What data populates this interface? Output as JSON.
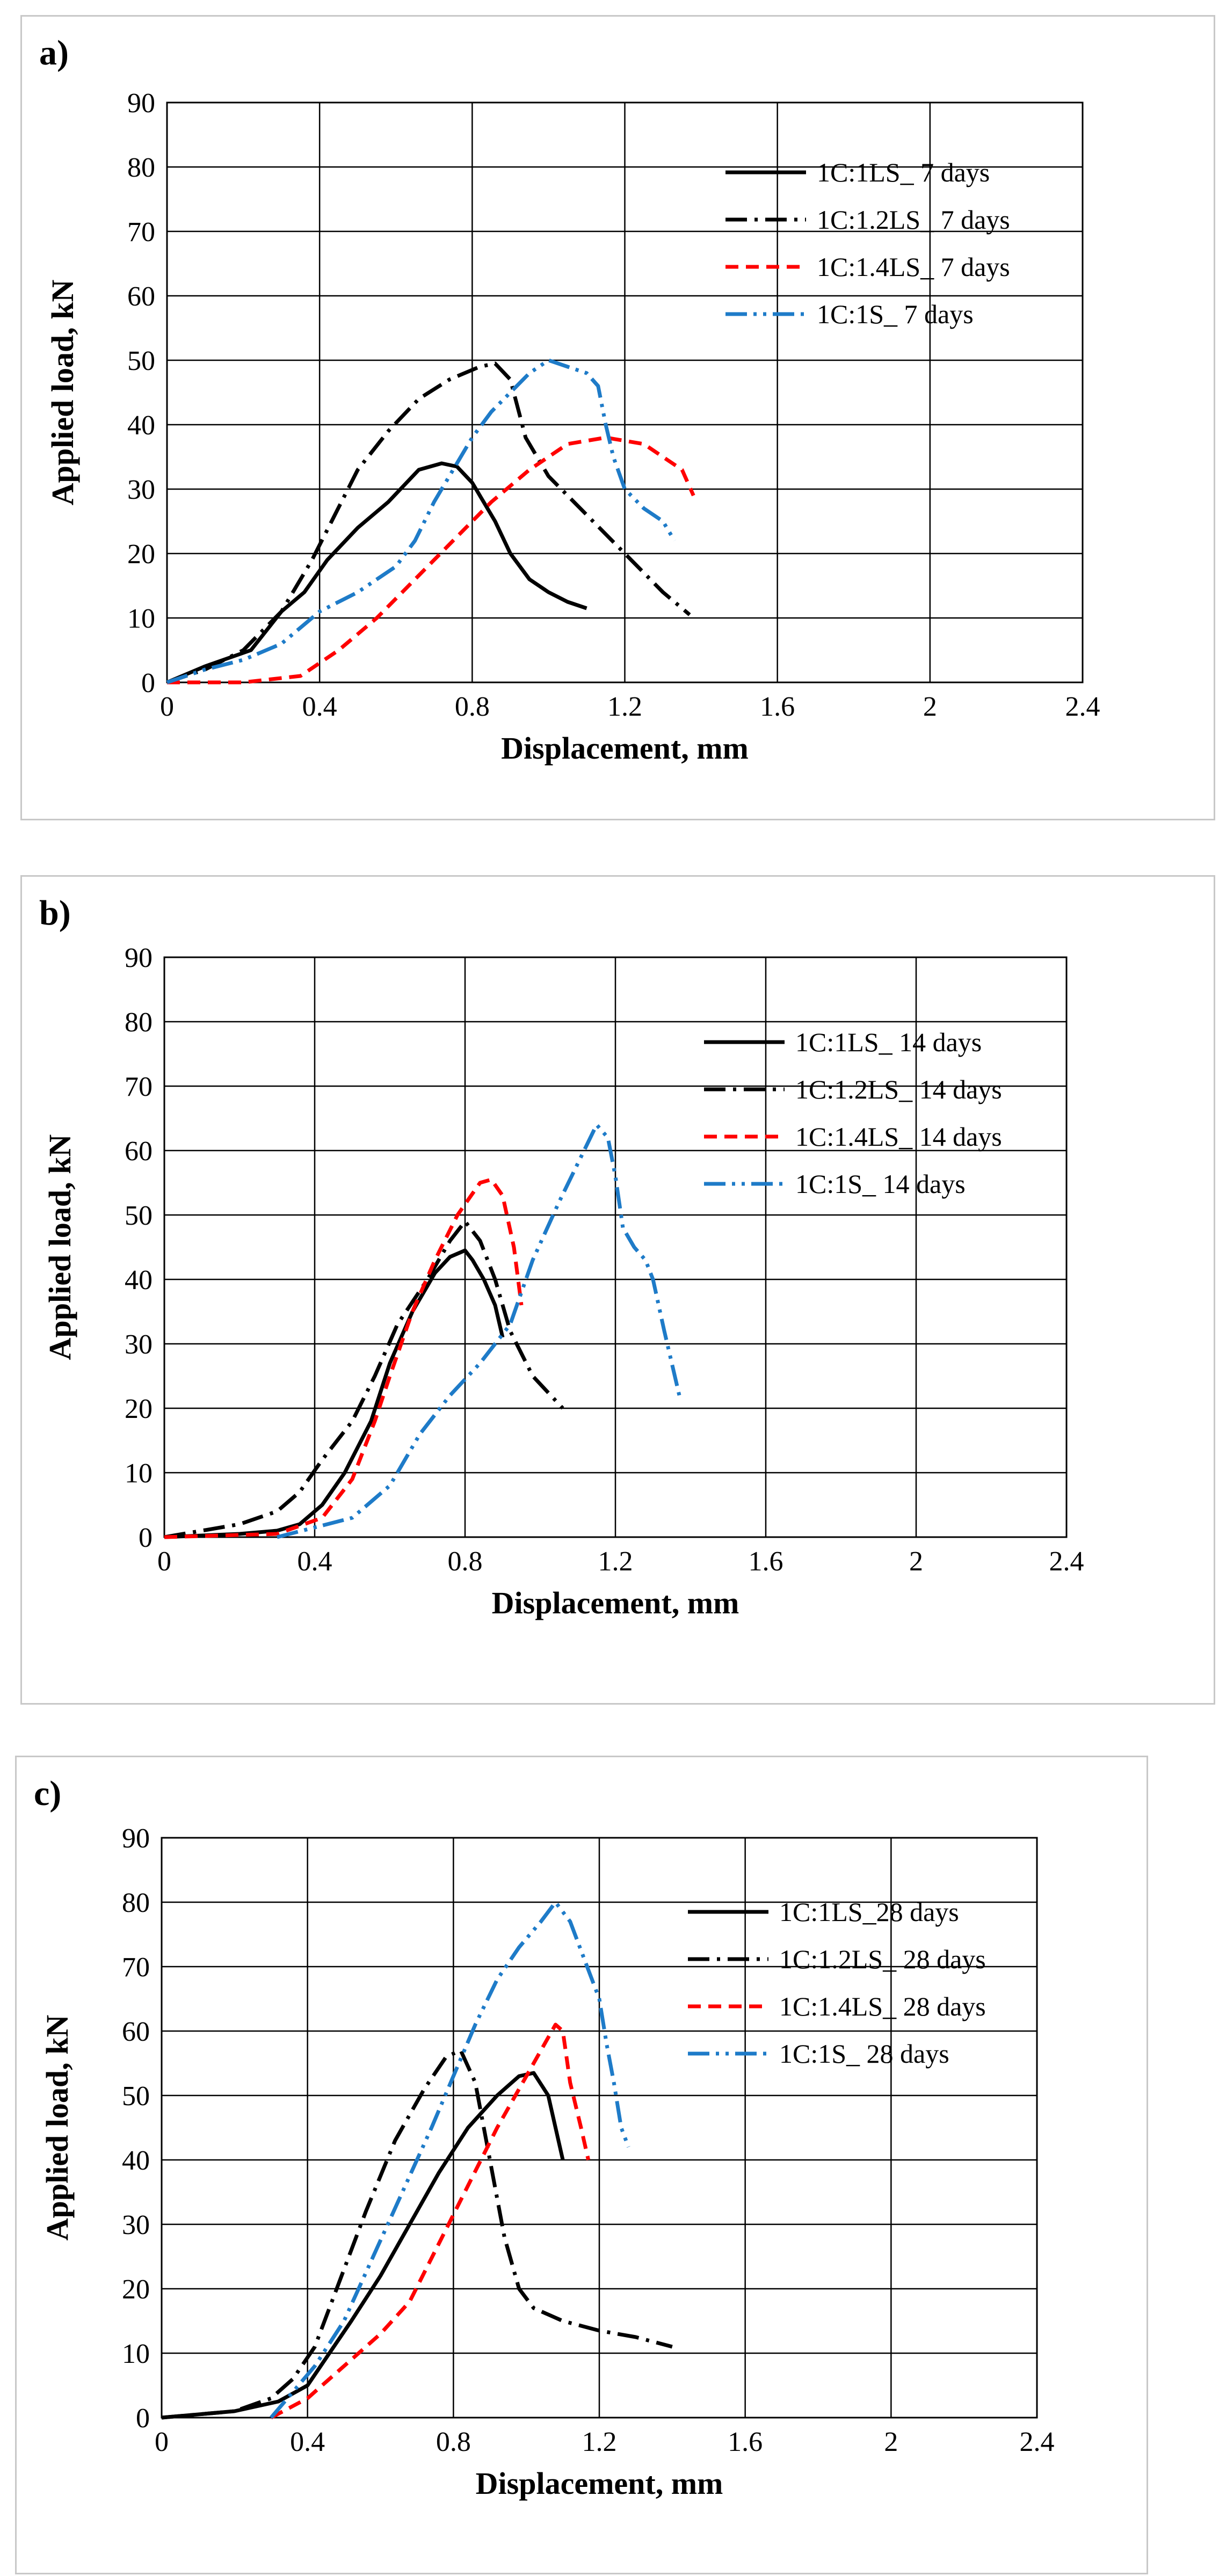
{
  "chart_data": [
    {
      "type": "line",
      "panel": "a)",
      "xlabel": "Displacement, mm",
      "ylabel": "Applied load, kN",
      "xlim": [
        0,
        2.4
      ],
      "ylim": [
        0,
        90
      ],
      "xticks": [
        0,
        0.4,
        0.8,
        1.2,
        1.6,
        2,
        2.4
      ],
      "xtick_labels": [
        "0",
        "0.4",
        "0.8",
        "1.2",
        "1.6",
        "2",
        "2.4"
      ],
      "yticks": [
        0,
        10,
        20,
        30,
        40,
        50,
        60,
        70,
        80,
        90
      ],
      "ytick_labels": [
        "0",
        "10",
        "20",
        "30",
        "40",
        "50",
        "60",
        "70",
        "80",
        "90"
      ],
      "legend_position": "top-right",
      "series": [
        {
          "name": "1C:1LS_ 7 days",
          "color": "#000000",
          "style": "solid",
          "x": [
            0,
            0.1,
            0.22,
            0.3,
            0.36,
            0.42,
            0.5,
            0.58,
            0.66,
            0.72,
            0.76,
            0.8,
            0.86,
            0.9,
            0.95,
            1.0,
            1.05,
            1.1
          ],
          "y": [
            0,
            2.5,
            5,
            11,
            14,
            19,
            24,
            28,
            33,
            34,
            33.5,
            31,
            25,
            20,
            16,
            14,
            12.5,
            11.5
          ]
        },
        {
          "name": "1C:1.2LS_ 7 days",
          "color": "#000000",
          "style": "dashdot",
          "x": [
            0,
            0.1,
            0.2,
            0.3,
            0.38,
            0.44,
            0.5,
            0.58,
            0.66,
            0.74,
            0.82,
            0.86,
            0.9,
            0.94,
            1.0,
            1.1,
            1.2,
            1.3,
            1.37
          ],
          "y": [
            0,
            2,
            5,
            11,
            19,
            26,
            33,
            39,
            44,
            47,
            49,
            49.5,
            47,
            38,
            32,
            26,
            20,
            14,
            10.5
          ]
        },
        {
          "name": "1C:1.4LS_ 7 days",
          "color": "#ff0000",
          "style": "dashed",
          "x": [
            0,
            0.2,
            0.35,
            0.45,
            0.55,
            0.65,
            0.75,
            0.85,
            0.95,
            1.05,
            1.15,
            1.2,
            1.25,
            1.3,
            1.35,
            1.38
          ],
          "y": [
            0,
            0,
            1,
            5,
            10,
            16,
            22,
            28,
            33,
            37,
            38,
            37.5,
            37,
            35,
            33,
            29
          ]
        },
        {
          "name": "1C:1S_ 7 days",
          "color": "#1e7bc8",
          "style": "dashdotdot",
          "x": [
            0,
            0.1,
            0.2,
            0.3,
            0.4,
            0.5,
            0.6,
            0.65,
            0.7,
            0.75,
            0.8,
            0.85,
            0.9,
            0.95,
            1.0,
            1.05,
            1.1,
            1.13,
            1.15,
            1.17,
            1.2,
            1.25,
            1.3,
            1.33
          ],
          "y": [
            0,
            2,
            3.5,
            6,
            11,
            14,
            18,
            22,
            28,
            33,
            38,
            42,
            45,
            48,
            50,
            49,
            48,
            46,
            40,
            35,
            30,
            27,
            25,
            22
          ]
        }
      ]
    },
    {
      "type": "line",
      "panel": "b)",
      "xlabel": "Displacement, mm",
      "ylabel": "Applied load, kN",
      "xlim": [
        0,
        2.4
      ],
      "ylim": [
        0,
        90
      ],
      "xticks": [
        0,
        0.4,
        0.8,
        1.2,
        1.6,
        2,
        2.4
      ],
      "xtick_labels": [
        "0",
        "0.4",
        "0.8",
        "1.2",
        "1.6",
        "2",
        "2.4"
      ],
      "yticks": [
        0,
        10,
        20,
        30,
        40,
        50,
        60,
        70,
        80,
        90
      ],
      "ytick_labels": [
        "0",
        "10",
        "20",
        "30",
        "40",
        "50",
        "60",
        "70",
        "80",
        "90"
      ],
      "legend_position": "top-right",
      "series": [
        {
          "name": "1C:1LS_ 14 days",
          "color": "#000000",
          "style": "solid",
          "x": [
            0,
            0.2,
            0.3,
            0.36,
            0.42,
            0.48,
            0.55,
            0.6,
            0.66,
            0.72,
            0.76,
            0.8,
            0.82,
            0.85,
            0.88,
            0.9
          ],
          "y": [
            0,
            0.5,
            1,
            2,
            5,
            10,
            18,
            27,
            35,
            41,
            43.5,
            44.5,
            43,
            40,
            36,
            31
          ]
        },
        {
          "name": "1C:1.2LS_ 14 days",
          "color": "#000000",
          "style": "dashdot",
          "x": [
            0,
            0.1,
            0.2,
            0.3,
            0.36,
            0.42,
            0.5,
            0.56,
            0.62,
            0.7,
            0.76,
            0.8,
            0.84,
            0.88,
            0.92,
            0.98,
            1.06
          ],
          "y": [
            0,
            1,
            2,
            4,
            7,
            12,
            18,
            25,
            33,
            40,
            46,
            49,
            46,
            40,
            32,
            25,
            20
          ]
        },
        {
          "name": "1C:1.4LS_ 14 days",
          "color": "#ff0000",
          "style": "dashed",
          "x": [
            0,
            0.3,
            0.42,
            0.5,
            0.56,
            0.6,
            0.66,
            0.72,
            0.78,
            0.84,
            0.87,
            0.9,
            0.93,
            0.95
          ],
          "y": [
            0,
            0.5,
            3,
            9,
            18,
            25,
            35,
            43,
            50,
            55,
            55.5,
            53,
            45,
            36
          ]
        },
        {
          "name": "1C:1S_ 14 days",
          "color": "#1e7bc8",
          "style": "dashdotdot",
          "x": [
            0.3,
            0.5,
            0.6,
            0.68,
            0.76,
            0.84,
            0.92,
            0.98,
            1.05,
            1.1,
            1.15,
            1.18,
            1.2,
            1.22,
            1.25,
            1.28,
            1.3,
            1.33,
            1.35,
            1.37
          ],
          "y": [
            0,
            3,
            8,
            16,
            22,
            27,
            33,
            43,
            52,
            58,
            64,
            62,
            56,
            48,
            45,
            43,
            40,
            32,
            27,
            22
          ]
        }
      ]
    },
    {
      "type": "line",
      "panel": "c)",
      "xlabel": "Displacement, mm",
      "ylabel": "Applied load, kN",
      "xlim": [
        0,
        2.4
      ],
      "ylim": [
        0,
        90
      ],
      "xticks": [
        0,
        0.4,
        0.8,
        1.2,
        1.6,
        2,
        2.4
      ],
      "xtick_labels": [
        "0",
        "0.4",
        "0.8",
        "1.2",
        "1.6",
        "2",
        "2.4"
      ],
      "yticks": [
        0,
        10,
        20,
        30,
        40,
        50,
        60,
        70,
        80,
        90
      ],
      "ytick_labels": [
        "0",
        "10",
        "20",
        "30",
        "40",
        "50",
        "60",
        "70",
        "80",
        "90"
      ],
      "legend_position": "top-right",
      "series": [
        {
          "name": "1C:1LS_28 days",
          "color": "#000000",
          "style": "solid",
          "x": [
            0,
            0.2,
            0.32,
            0.4,
            0.46,
            0.52,
            0.6,
            0.68,
            0.76,
            0.84,
            0.92,
            0.98,
            1.02,
            1.06,
            1.08,
            1.1
          ],
          "y": [
            0,
            1,
            2.5,
            5,
            10,
            15,
            22,
            30,
            38,
            45,
            50,
            53,
            53.5,
            50,
            45,
            40
          ]
        },
        {
          "name": "1C:1.2LS_ 28 days",
          "color": "#000000",
          "style": "dashdot",
          "x": [
            0,
            0.2,
            0.3,
            0.36,
            0.42,
            0.48,
            0.56,
            0.64,
            0.72,
            0.78,
            0.82,
            0.86,
            0.9,
            0.94,
            0.98,
            1.02,
            1.1,
            1.2,
            1.3,
            1.4
          ],
          "y": [
            0,
            1,
            3,
            6,
            11,
            20,
            32,
            43,
            51,
            56,
            57,
            52,
            40,
            28,
            20,
            17,
            15,
            13.5,
            12.5,
            11
          ]
        },
        {
          "name": "1C:1.4LS_ 28 days",
          "color": "#ff0000",
          "style": "dashed",
          "x": [
            0.3,
            0.4,
            0.5,
            0.6,
            0.68,
            0.76,
            0.84,
            0.92,
            1.0,
            1.04,
            1.08,
            1.1,
            1.12,
            1.15,
            1.17
          ],
          "y": [
            0,
            3,
            8,
            13,
            18,
            27,
            36,
            45,
            53,
            57,
            61,
            60,
            52,
            45,
            40
          ]
        },
        {
          "name": "1C:1S_ 28 days",
          "color": "#1e7bc8",
          "style": "dashdotdot",
          "x": [
            0.3,
            0.42,
            0.5,
            0.58,
            0.66,
            0.74,
            0.8,
            0.86,
            0.92,
            0.98,
            1.04,
            1.08,
            1.12,
            1.16,
            1.2,
            1.22,
            1.24,
            1.26,
            1.28
          ],
          "y": [
            0,
            8,
            15,
            25,
            35,
            45,
            53,
            61,
            68,
            73,
            77,
            80,
            77,
            71,
            65,
            58,
            52,
            45,
            42
          ]
        }
      ]
    }
  ]
}
